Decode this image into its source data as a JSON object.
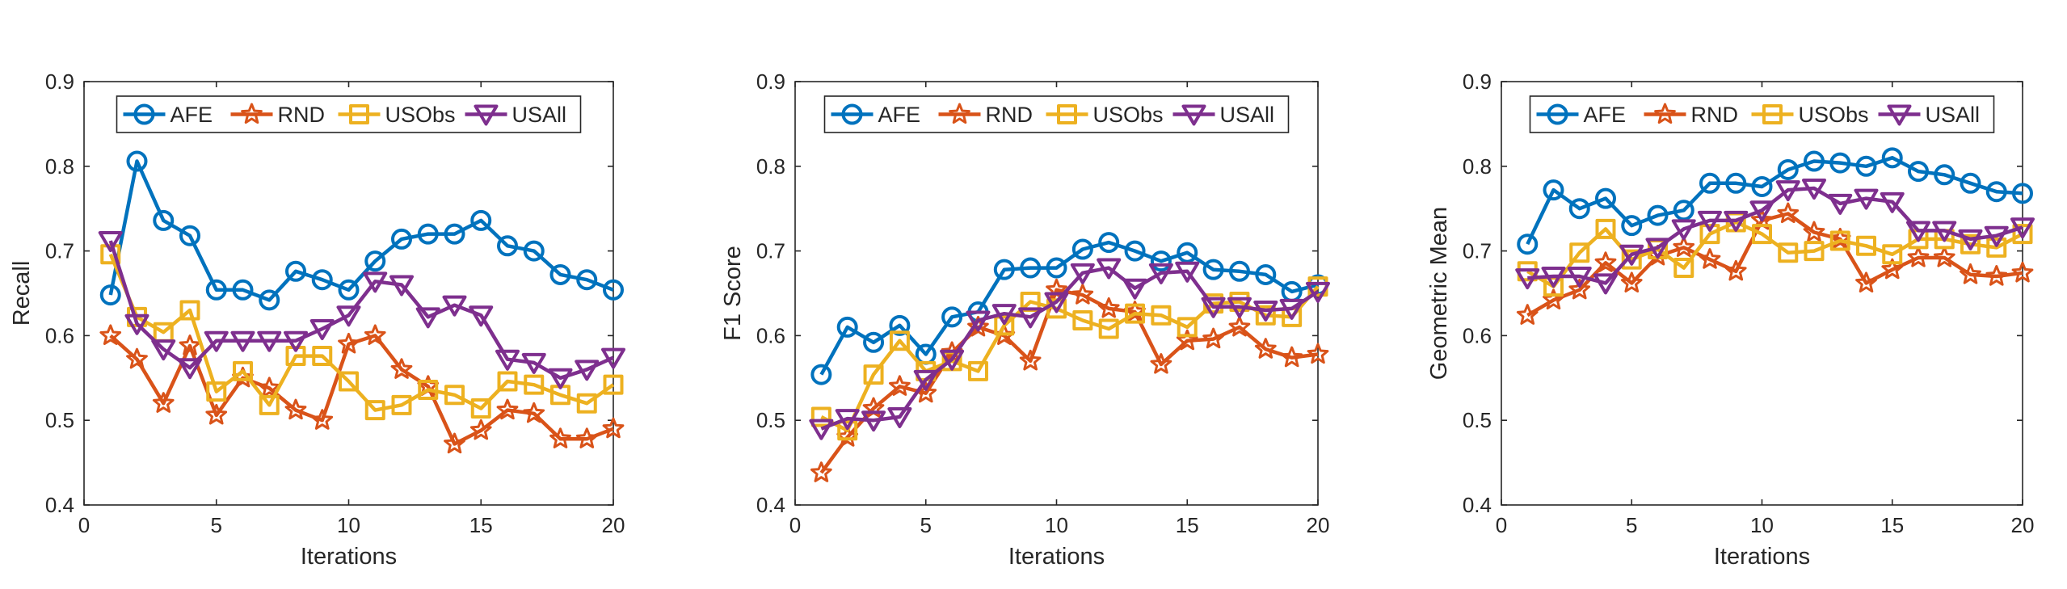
{
  "chart_data": [
    {
      "type": "line",
      "title": "",
      "xlabel": "Iterations",
      "ylabel": "Recall",
      "xlim": [
        0,
        20
      ],
      "ylim": [
        0.4,
        0.9
      ],
      "xticks": [
        0,
        5,
        10,
        15,
        20
      ],
      "yticks": [
        0.4,
        0.5,
        0.6,
        0.7,
        0.8,
        0.9
      ],
      "x": [
        1,
        2,
        3,
        4,
        5,
        6,
        7,
        8,
        9,
        10,
        11,
        12,
        13,
        14,
        15,
        16,
        17,
        18,
        19,
        20
      ],
      "legend_position": "top",
      "series": [
        {
          "name": "AFE",
          "color": "#0072BD",
          "marker": "circle",
          "values": [
            0.648,
            0.806,
            0.736,
            0.718,
            0.654,
            0.654,
            0.642,
            0.676,
            0.666,
            0.654,
            0.688,
            0.714,
            0.72,
            0.72,
            0.736,
            0.706,
            0.7,
            0.672,
            0.666,
            0.654
          ]
        },
        {
          "name": "RND",
          "color": "#D95319",
          "marker": "star",
          "values": [
            0.6,
            0.572,
            0.52,
            0.588,
            0.506,
            0.55,
            0.538,
            0.512,
            0.5,
            0.59,
            0.6,
            0.56,
            0.54,
            0.472,
            0.488,
            0.512,
            0.508,
            0.478,
            0.478,
            0.49
          ]
        },
        {
          "name": "USObs",
          "color": "#EDB120",
          "marker": "square",
          "values": [
            0.696,
            0.622,
            0.604,
            0.63,
            0.534,
            0.558,
            0.518,
            0.576,
            0.576,
            0.546,
            0.512,
            0.518,
            0.536,
            0.53,
            0.514,
            0.546,
            0.542,
            0.53,
            0.52,
            0.542
          ]
        },
        {
          "name": "USAll",
          "color": "#7E2F8E",
          "marker": "triangle-down",
          "values": [
            0.712,
            0.614,
            0.584,
            0.562,
            0.594,
            0.594,
            0.594,
            0.594,
            0.608,
            0.624,
            0.664,
            0.66,
            0.622,
            0.636,
            0.624,
            0.572,
            0.568,
            0.55,
            0.56,
            0.574
          ]
        }
      ]
    },
    {
      "type": "line",
      "title": "",
      "xlabel": "Iterations",
      "ylabel": "F1 Score",
      "xlim": [
        0,
        20
      ],
      "ylim": [
        0.4,
        0.9
      ],
      "xticks": [
        0,
        5,
        10,
        15,
        20
      ],
      "yticks": [
        0.4,
        0.5,
        0.6,
        0.7,
        0.8,
        0.9
      ],
      "x": [
        1,
        2,
        3,
        4,
        5,
        6,
        7,
        8,
        9,
        10,
        11,
        12,
        13,
        14,
        15,
        16,
        17,
        18,
        19,
        20
      ],
      "legend_position": "top",
      "series": [
        {
          "name": "AFE",
          "color": "#0072BD",
          "marker": "circle",
          "values": [
            0.554,
            0.61,
            0.592,
            0.612,
            0.578,
            0.622,
            0.628,
            0.678,
            0.68,
            0.68,
            0.702,
            0.71,
            0.7,
            0.688,
            0.698,
            0.678,
            0.676,
            0.672,
            0.652,
            0.66
          ]
        },
        {
          "name": "RND",
          "color": "#D95319",
          "marker": "star",
          "values": [
            0.438,
            0.48,
            0.514,
            0.54,
            0.532,
            0.58,
            0.61,
            0.6,
            0.57,
            0.654,
            0.648,
            0.632,
            0.628,
            0.566,
            0.594,
            0.596,
            0.61,
            0.584,
            0.574,
            0.578
          ]
        },
        {
          "name": "USObs",
          "color": "#EDB120",
          "marker": "square",
          "values": [
            0.504,
            0.488,
            0.554,
            0.594,
            0.558,
            0.57,
            0.558,
            0.612,
            0.64,
            0.632,
            0.618,
            0.608,
            0.626,
            0.624,
            0.61,
            0.638,
            0.64,
            0.624,
            0.622,
            0.658
          ]
        },
        {
          "name": "USAll",
          "color": "#7E2F8E",
          "marker": "triangle-down",
          "values": [
            0.49,
            0.502,
            0.5,
            0.504,
            0.548,
            0.572,
            0.618,
            0.626,
            0.622,
            0.64,
            0.674,
            0.68,
            0.656,
            0.674,
            0.676,
            0.634,
            0.634,
            0.63,
            0.632,
            0.652
          ]
        }
      ]
    },
    {
      "type": "line",
      "title": "",
      "xlabel": "Iterations",
      "ylabel": "Geometric Mean",
      "xlim": [
        0,
        20
      ],
      "ylim": [
        0.4,
        0.9
      ],
      "xticks": [
        0,
        5,
        10,
        15,
        20
      ],
      "yticks": [
        0.4,
        0.5,
        0.6,
        0.7,
        0.8,
        0.9
      ],
      "x": [
        1,
        2,
        3,
        4,
        5,
        6,
        7,
        8,
        9,
        10,
        11,
        12,
        13,
        14,
        15,
        16,
        17,
        18,
        19,
        20
      ],
      "legend_position": "top",
      "series": [
        {
          "name": "AFE",
          "color": "#0072BD",
          "marker": "circle",
          "values": [
            0.708,
            0.772,
            0.75,
            0.762,
            0.73,
            0.742,
            0.748,
            0.78,
            0.78,
            0.776,
            0.796,
            0.806,
            0.804,
            0.8,
            0.81,
            0.794,
            0.79,
            0.78,
            0.77,
            0.768
          ]
        },
        {
          "name": "RND",
          "color": "#D95319",
          "marker": "star",
          "values": [
            0.624,
            0.642,
            0.654,
            0.686,
            0.662,
            0.694,
            0.704,
            0.69,
            0.676,
            0.736,
            0.744,
            0.722,
            0.714,
            0.662,
            0.678,
            0.692,
            0.692,
            0.672,
            0.67,
            0.674
          ]
        },
        {
          "name": "USObs",
          "color": "#EDB120",
          "marker": "square",
          "values": [
            0.676,
            0.658,
            0.698,
            0.726,
            0.69,
            0.702,
            0.68,
            0.72,
            0.734,
            0.72,
            0.698,
            0.7,
            0.712,
            0.706,
            0.696,
            0.714,
            0.714,
            0.708,
            0.704,
            0.72
          ]
        },
        {
          "name": "USAll",
          "color": "#7E2F8E",
          "marker": "triangle-down",
          "values": [
            0.668,
            0.67,
            0.67,
            0.662,
            0.696,
            0.704,
            0.726,
            0.736,
            0.736,
            0.748,
            0.772,
            0.774,
            0.756,
            0.762,
            0.758,
            0.724,
            0.724,
            0.714,
            0.718,
            0.728
          ]
        }
      ]
    }
  ]
}
